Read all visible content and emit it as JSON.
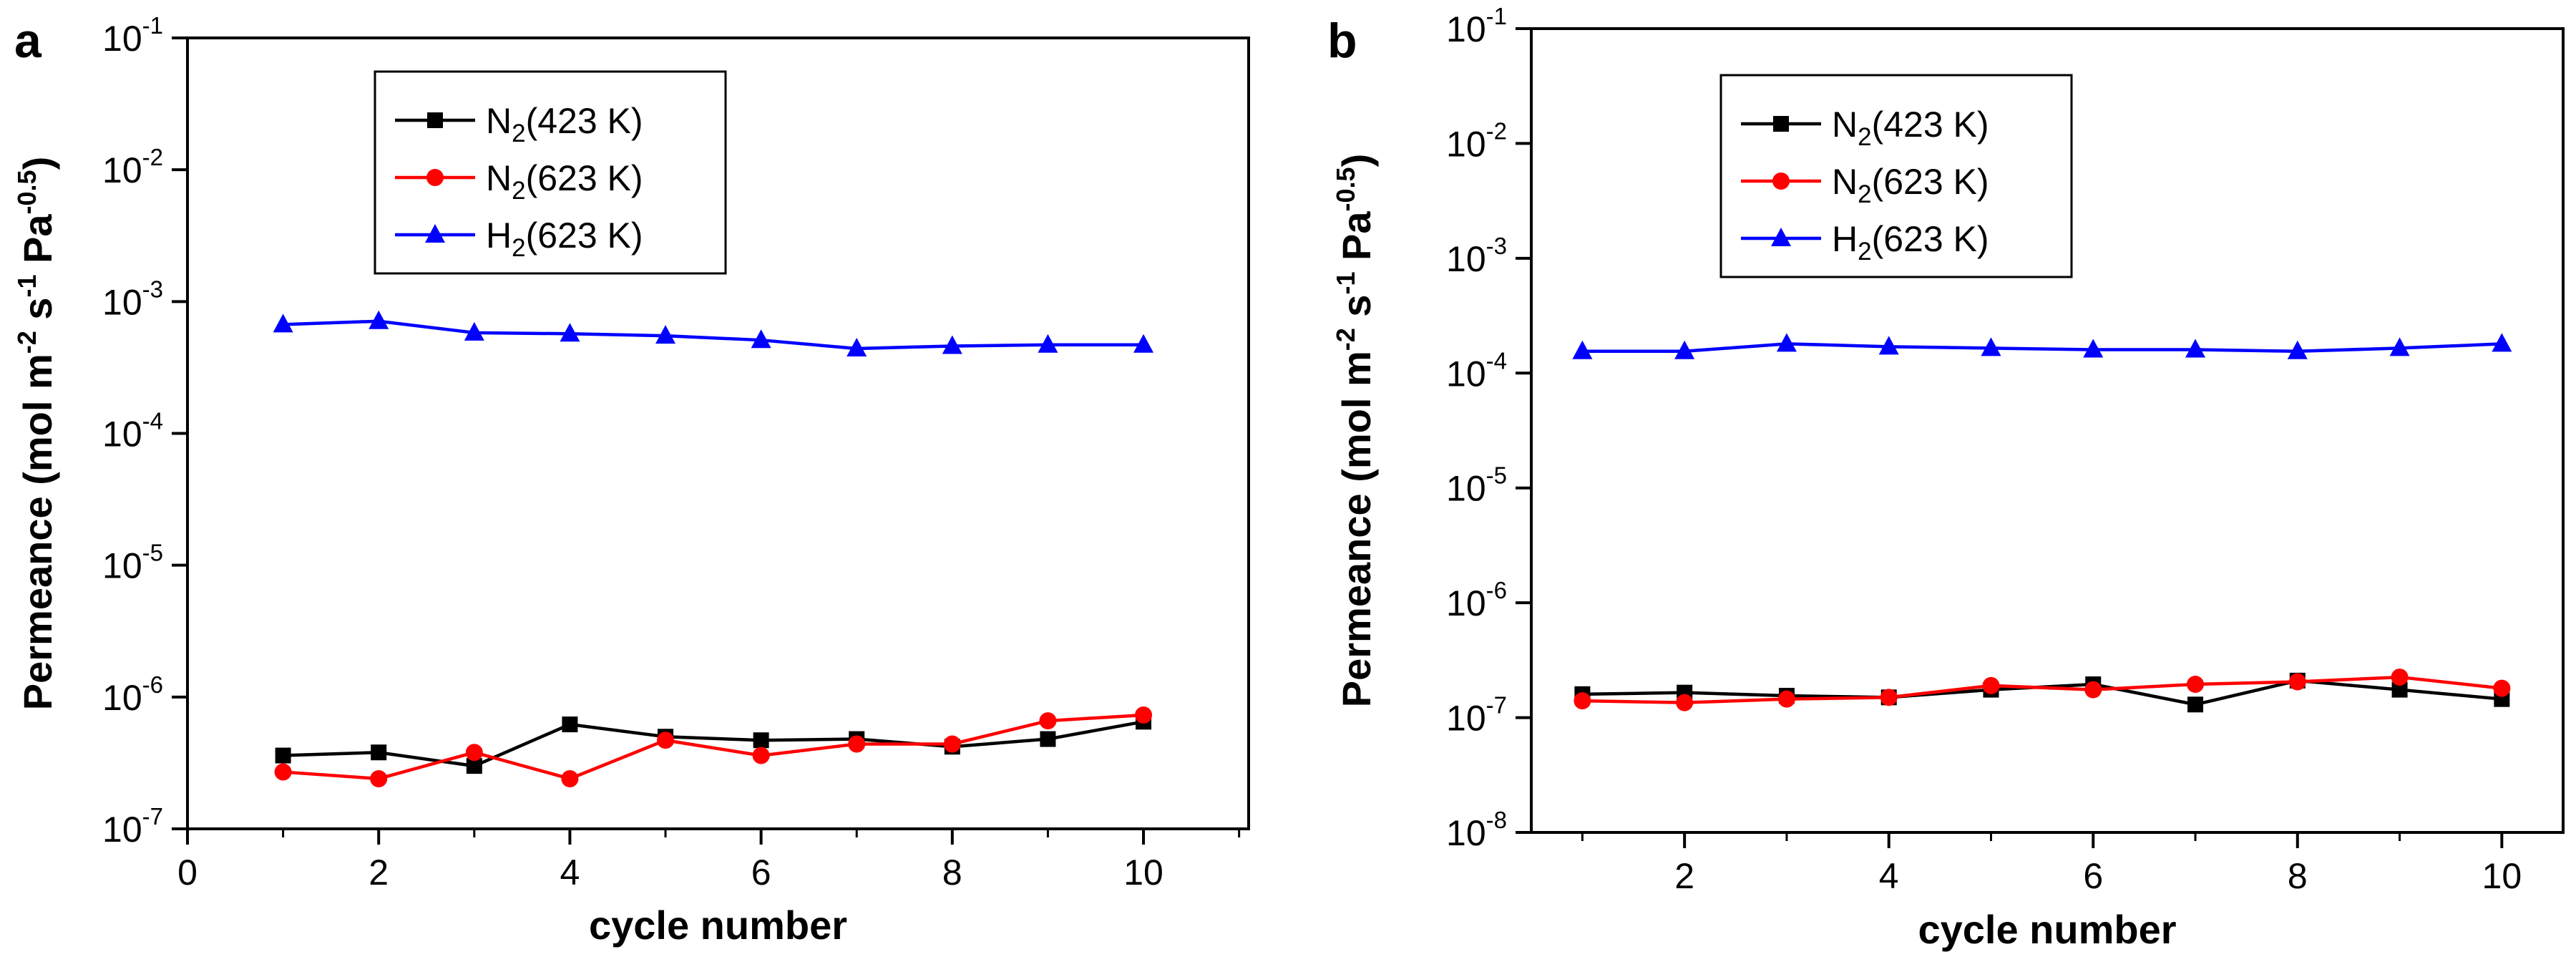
{
  "chart_data": [
    {
      "panel": "a",
      "type": "line",
      "xlabel": "cycle number",
      "ylabel": {
        "prefix": "Permeance (mol m",
        "sup1": "-2",
        "mid1": " s",
        "sup2": "-1",
        "mid2": " Pa",
        "sup3": "-0.5",
        "suffix": ")"
      },
      "yscale": "log",
      "xlim": [
        0,
        11.1
      ],
      "ylim": [
        1e-07,
        0.1
      ],
      "xticks": [
        0,
        2,
        4,
        6,
        8,
        10
      ],
      "yticks": [
        {
          "value": 1e-07,
          "base": "10",
          "exp": "-7"
        },
        {
          "value": 1e-06,
          "base": "10",
          "exp": "-6"
        },
        {
          "value": 1e-05,
          "base": "10",
          "exp": "-5"
        },
        {
          "value": 0.0001,
          "base": "10",
          "exp": "-4"
        },
        {
          "value": 0.001,
          "base": "10",
          "exp": "-3"
        },
        {
          "value": 0.01,
          "base": "10",
          "exp": "-2"
        },
        {
          "value": 0.1,
          "base": "10",
          "exp": "-1"
        }
      ],
      "grid": false,
      "legend_position": "top-left",
      "x": [
        1,
        2,
        3,
        4,
        5,
        6,
        7,
        8,
        9,
        10
      ],
      "series": [
        {
          "label_main": "N",
          "label_sub": "2",
          "label_rest": "(423 K)",
          "color": "#000000",
          "marker": "square",
          "values": [
            3.6e-07,
            3.8e-07,
            3e-07,
            6.2e-07,
            5e-07,
            4.7e-07,
            4.8e-07,
            4.2e-07,
            4.8e-07,
            6.5e-07
          ]
        },
        {
          "label_main": "N",
          "label_sub": "2",
          "label_rest": "(623 K)",
          "color": "#ff0000",
          "marker": "circle",
          "values": [
            2.7e-07,
            2.4e-07,
            3.8e-07,
            2.4e-07,
            4.7e-07,
            3.6e-07,
            4.4e-07,
            4.4e-07,
            6.6e-07,
            7.3e-07
          ]
        },
        {
          "label_main": "H",
          "label_sub": "2",
          "label_rest": "(623 K)",
          "color": "#0000ff",
          "marker": "triangle",
          "values": [
            0.00067,
            0.00071,
            0.00058,
            0.00057,
            0.00055,
            0.00051,
            0.00044,
            0.00046,
            0.00047,
            0.00047
          ]
        }
      ]
    },
    {
      "panel": "b",
      "type": "line",
      "xlabel": "cycle number",
      "ylabel": {
        "prefix": "Permeance (mol m",
        "sup1": "-2",
        "mid1": " s",
        "sup2": "-1",
        "mid2": " Pa",
        "sup3": "-0.5",
        "suffix": ")"
      },
      "yscale": "log",
      "xlim": [
        0.5,
        10.6
      ],
      "ylim": [
        1e-08,
        0.1
      ],
      "xticks": [
        2,
        4,
        6,
        8,
        10
      ],
      "yticks": [
        {
          "value": 1e-08,
          "base": "10",
          "exp": "-8"
        },
        {
          "value": 1e-07,
          "base": "10",
          "exp": "-7"
        },
        {
          "value": 1e-06,
          "base": "10",
          "exp": "-6"
        },
        {
          "value": 1e-05,
          "base": "10",
          "exp": "-5"
        },
        {
          "value": 0.0001,
          "base": "10",
          "exp": "-4"
        },
        {
          "value": 0.001,
          "base": "10",
          "exp": "-3"
        },
        {
          "value": 0.01,
          "base": "10",
          "exp": "-2"
        },
        {
          "value": 0.1,
          "base": "10",
          "exp": "-1"
        }
      ],
      "grid": false,
      "legend_position": "top-left",
      "x": [
        1,
        2,
        3,
        4,
        5,
        6,
        7,
        8,
        9,
        10
      ],
      "series": [
        {
          "label_main": "N",
          "label_sub": "2",
          "label_rest": "(423 K)",
          "color": "#000000",
          "marker": "square",
          "values": [
            1.6e-07,
            1.65e-07,
            1.55e-07,
            1.5e-07,
            1.75e-07,
            1.95e-07,
            1.3e-07,
            2.1e-07,
            1.75e-07,
            1.45e-07
          ]
        },
        {
          "label_main": "N",
          "label_sub": "2",
          "label_rest": "(623 K)",
          "color": "#ff0000",
          "marker": "circle",
          "values": [
            1.4e-07,
            1.35e-07,
            1.45e-07,
            1.5e-07,
            1.9e-07,
            1.75e-07,
            1.95e-07,
            2.05e-07,
            2.25e-07,
            1.8e-07
          ]
        },
        {
          "label_main": "H",
          "label_sub": "2",
          "label_rest": "(623 K)",
          "color": "#0000ff",
          "marker": "triangle",
          "values": [
            0.000155,
            0.000155,
            0.00018,
            0.00017,
            0.000165,
            0.00016,
            0.00016,
            0.000155,
            0.000165,
            0.00018
          ]
        }
      ]
    }
  ]
}
